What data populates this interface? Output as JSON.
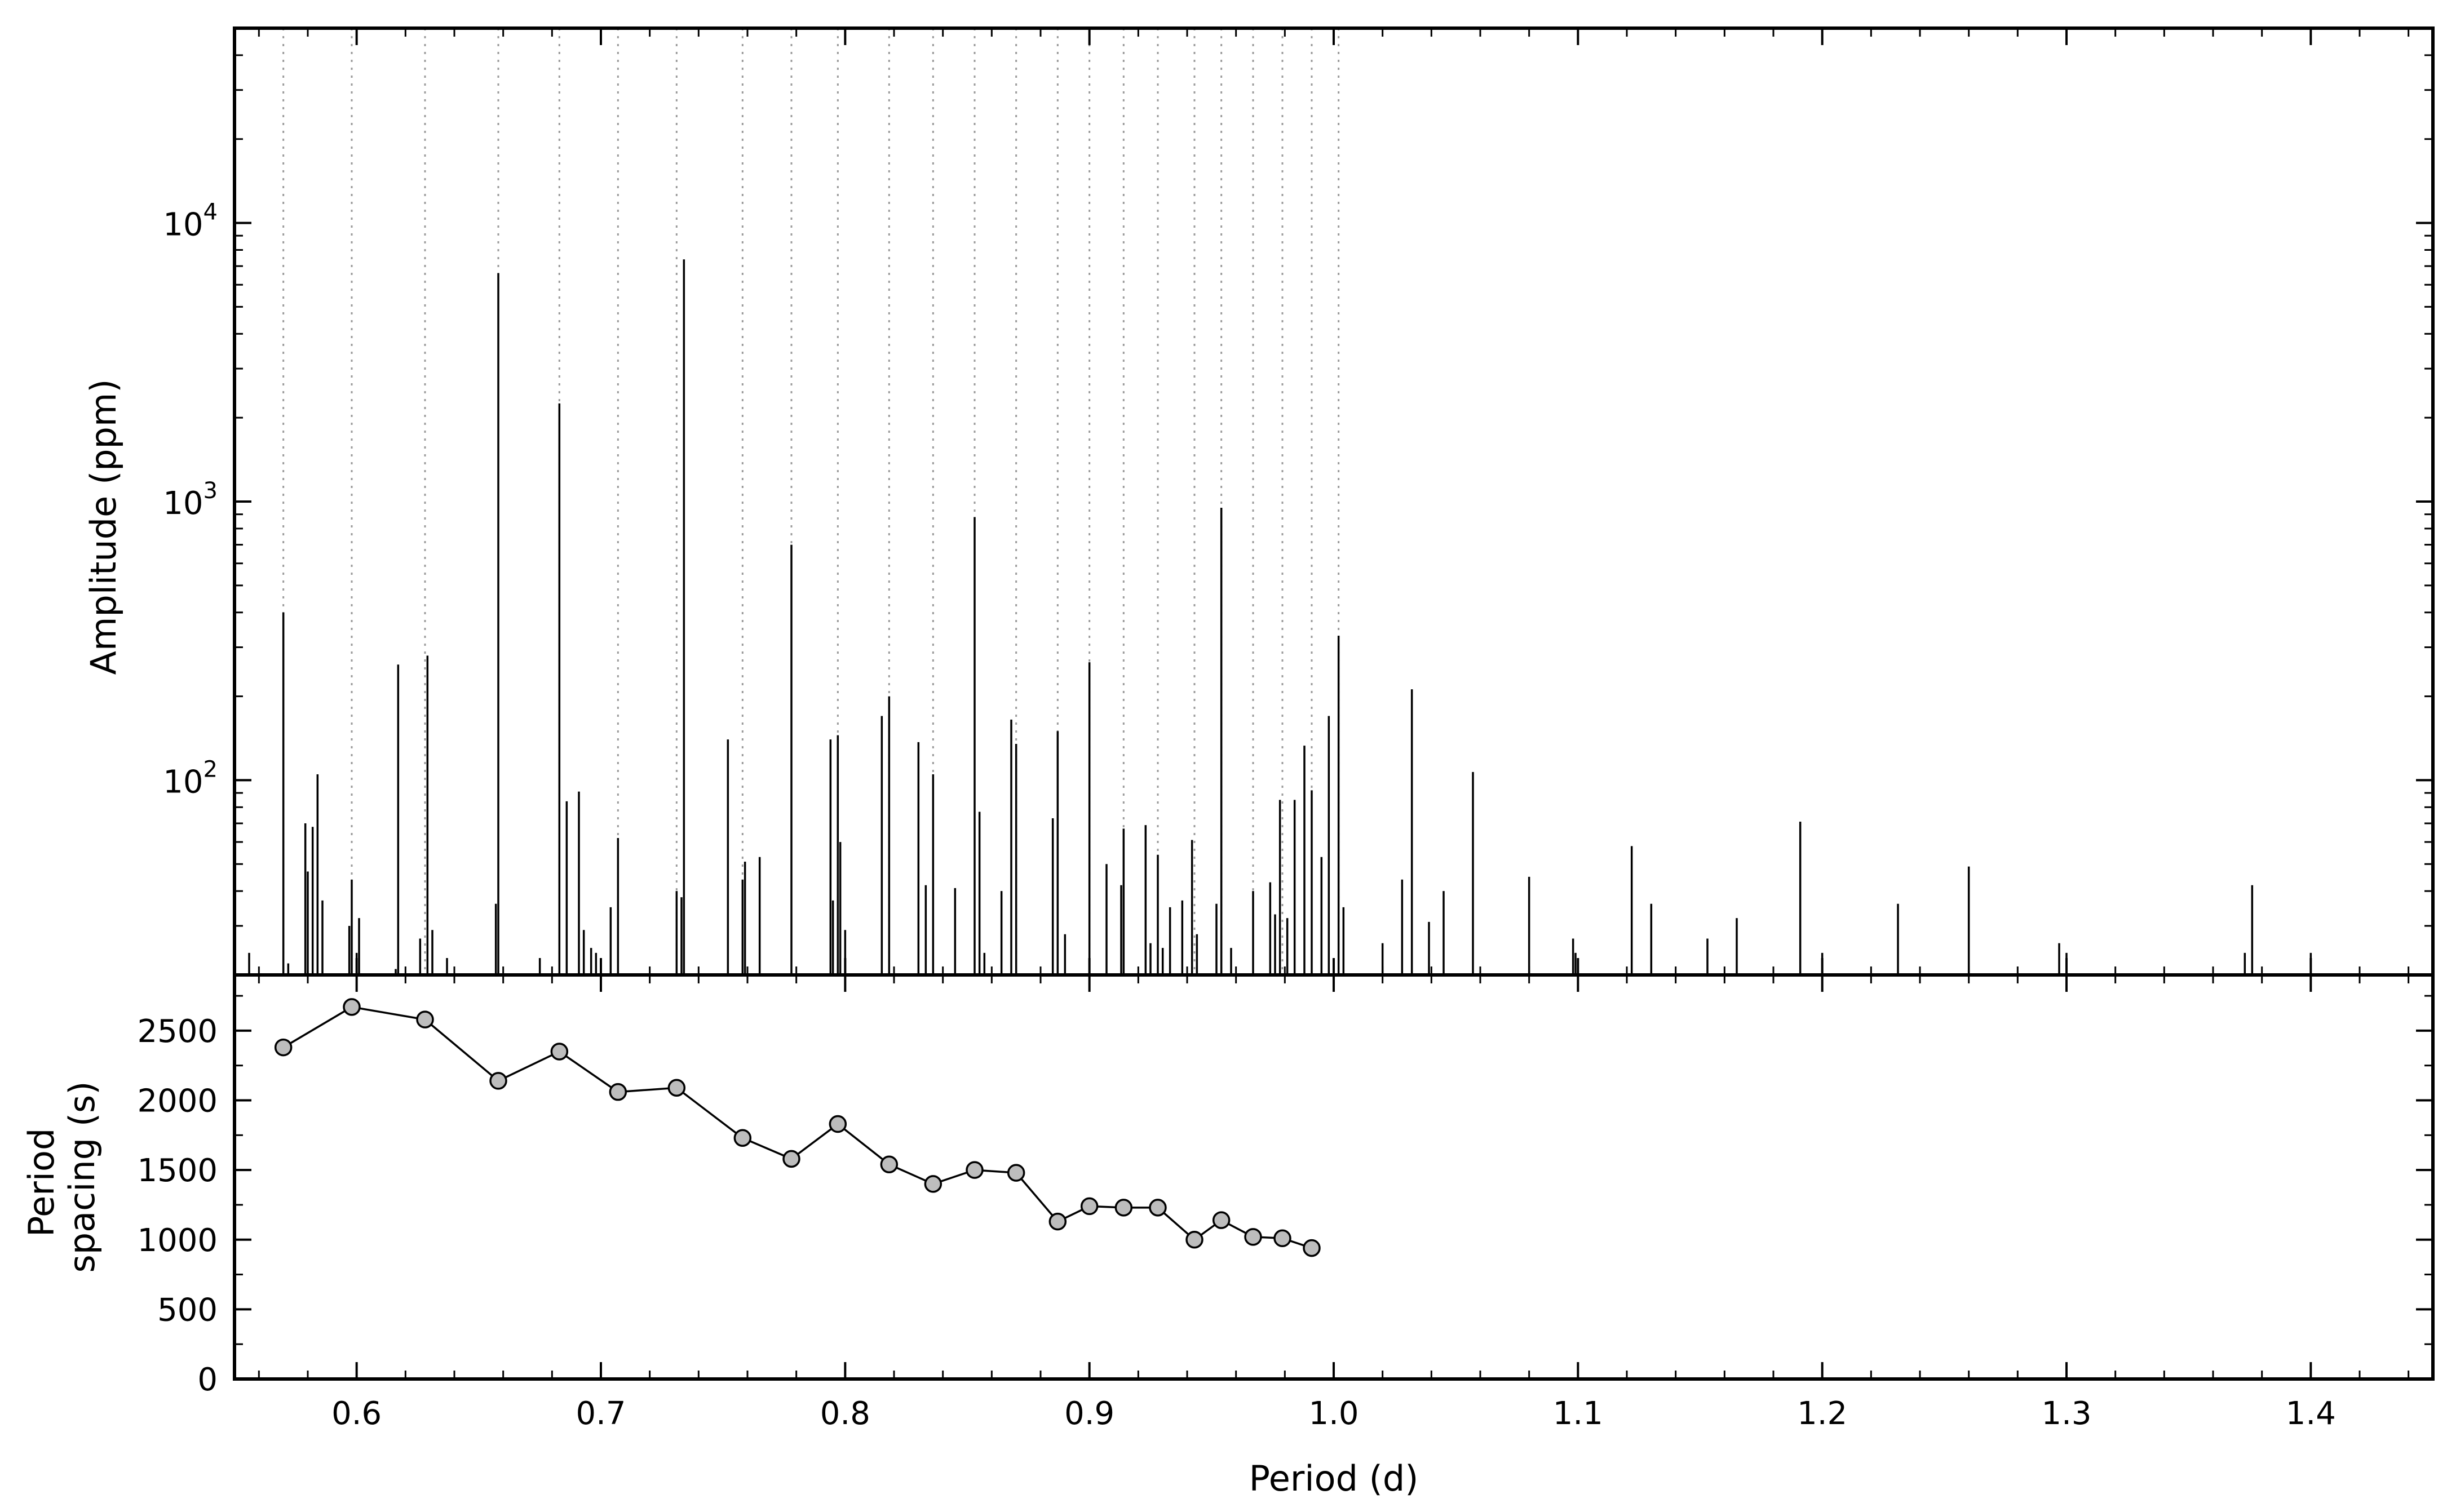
{
  "chart_data": [
    {
      "type": "bar",
      "panel": "top",
      "xlabel": "",
      "ylabel": "Amplitude (ppm)",
      "xlim": [
        0.55,
        1.45
      ],
      "ylim": [
        20,
        50000
      ],
      "yscale": "log",
      "grid": false,
      "ytick_labels": [
        {
          "value": 100,
          "base": "10",
          "exp": "2"
        },
        {
          "value": 1000,
          "base": "10",
          "exp": "3"
        },
        {
          "value": 10000,
          "base": "10",
          "exp": "4"
        }
      ],
      "guide_periods": [
        0.57,
        0.598,
        0.628,
        0.658,
        0.683,
        0.707,
        0.731,
        0.758,
        0.778,
        0.797,
        0.818,
        0.836,
        0.853,
        0.87,
        0.887,
        0.9,
        0.914,
        0.928,
        0.943,
        0.954,
        0.967,
        0.979,
        0.991,
        1.002
      ],
      "peaks": [
        {
          "x": 0.556,
          "y": 24
        },
        {
          "x": 0.57,
          "y": 400
        },
        {
          "x": 0.572,
          "y": 22
        },
        {
          "x": 0.579,
          "y": 70
        },
        {
          "x": 0.58,
          "y": 47
        },
        {
          "x": 0.582,
          "y": 68
        },
        {
          "x": 0.584,
          "y": 105
        },
        {
          "x": 0.586,
          "y": 37
        },
        {
          "x": 0.597,
          "y": 30
        },
        {
          "x": 0.598,
          "y": 44
        },
        {
          "x": 0.6,
          "y": 24
        },
        {
          "x": 0.601,
          "y": 32
        },
        {
          "x": 0.616,
          "y": 21
        },
        {
          "x": 0.617,
          "y": 260
        },
        {
          "x": 0.626,
          "y": 27
        },
        {
          "x": 0.629,
          "y": 280
        },
        {
          "x": 0.631,
          "y": 29
        },
        {
          "x": 0.637,
          "y": 23
        },
        {
          "x": 0.657,
          "y": 36
        },
        {
          "x": 0.658,
          "y": 6600
        },
        {
          "x": 0.675,
          "y": 23
        },
        {
          "x": 0.683,
          "y": 2250
        },
        {
          "x": 0.686,
          "y": 84
        },
        {
          "x": 0.691,
          "y": 91
        },
        {
          "x": 0.693,
          "y": 29
        },
        {
          "x": 0.696,
          "y": 25
        },
        {
          "x": 0.698,
          "y": 24
        },
        {
          "x": 0.704,
          "y": 35
        },
        {
          "x": 0.707,
          "y": 62
        },
        {
          "x": 0.731,
          "y": 40
        },
        {
          "x": 0.733,
          "y": 38
        },
        {
          "x": 0.734,
          "y": 7400
        },
        {
          "x": 0.752,
          "y": 140
        },
        {
          "x": 0.758,
          "y": 44
        },
        {
          "x": 0.759,
          "y": 51
        },
        {
          "x": 0.765,
          "y": 53
        },
        {
          "x": 0.778,
          "y": 700
        },
        {
          "x": 0.794,
          "y": 140
        },
        {
          "x": 0.795,
          "y": 37
        },
        {
          "x": 0.797,
          "y": 145
        },
        {
          "x": 0.798,
          "y": 60
        },
        {
          "x": 0.8,
          "y": 29
        },
        {
          "x": 0.815,
          "y": 170
        },
        {
          "x": 0.818,
          "y": 200
        },
        {
          "x": 0.83,
          "y": 137
        },
        {
          "x": 0.833,
          "y": 42
        },
        {
          "x": 0.836,
          "y": 105
        },
        {
          "x": 0.845,
          "y": 41
        },
        {
          "x": 0.853,
          "y": 880
        },
        {
          "x": 0.855,
          "y": 77
        },
        {
          "x": 0.857,
          "y": 24
        },
        {
          "x": 0.864,
          "y": 40
        },
        {
          "x": 0.868,
          "y": 165
        },
        {
          "x": 0.87,
          "y": 135
        },
        {
          "x": 0.885,
          "y": 73
        },
        {
          "x": 0.887,
          "y": 150
        },
        {
          "x": 0.89,
          "y": 28
        },
        {
          "x": 0.9,
          "y": 265
        },
        {
          "x": 0.907,
          "y": 50
        },
        {
          "x": 0.913,
          "y": 42
        },
        {
          "x": 0.914,
          "y": 67
        },
        {
          "x": 0.923,
          "y": 69
        },
        {
          "x": 0.925,
          "y": 26
        },
        {
          "x": 0.928,
          "y": 54
        },
        {
          "x": 0.93,
          "y": 25
        },
        {
          "x": 0.933,
          "y": 35
        },
        {
          "x": 0.938,
          "y": 37
        },
        {
          "x": 0.942,
          "y": 61
        },
        {
          "x": 0.944,
          "y": 28
        },
        {
          "x": 0.952,
          "y": 36
        },
        {
          "x": 0.954,
          "y": 950
        },
        {
          "x": 0.958,
          "y": 25
        },
        {
          "x": 0.967,
          "y": 40
        },
        {
          "x": 0.974,
          "y": 43
        },
        {
          "x": 0.976,
          "y": 33
        },
        {
          "x": 0.978,
          "y": 85
        },
        {
          "x": 0.981,
          "y": 32
        },
        {
          "x": 0.984,
          "y": 85
        },
        {
          "x": 0.988,
          "y": 133
        },
        {
          "x": 0.991,
          "y": 92
        },
        {
          "x": 0.995,
          "y": 53
        },
        {
          "x": 0.998,
          "y": 170
        },
        {
          "x": 1.002,
          "y": 330
        },
        {
          "x": 1.004,
          "y": 35
        },
        {
          "x": 1.02,
          "y": 26
        },
        {
          "x": 1.028,
          "y": 44
        },
        {
          "x": 1.032,
          "y": 212
        },
        {
          "x": 1.039,
          "y": 31
        },
        {
          "x": 1.045,
          "y": 40
        },
        {
          "x": 1.057,
          "y": 107
        },
        {
          "x": 1.08,
          "y": 45
        },
        {
          "x": 1.098,
          "y": 27
        },
        {
          "x": 1.099,
          "y": 24
        },
        {
          "x": 1.122,
          "y": 58
        },
        {
          "x": 1.13,
          "y": 36
        },
        {
          "x": 1.153,
          "y": 27
        },
        {
          "x": 1.165,
          "y": 32
        },
        {
          "x": 1.191,
          "y": 71
        },
        {
          "x": 1.2,
          "y": 24
        },
        {
          "x": 1.231,
          "y": 36
        },
        {
          "x": 1.26,
          "y": 49
        },
        {
          "x": 1.297,
          "y": 26
        },
        {
          "x": 1.3,
          "y": 24
        },
        {
          "x": 1.373,
          "y": 24
        },
        {
          "x": 1.376,
          "y": 42
        },
        {
          "x": 1.4,
          "y": 24
        }
      ]
    },
    {
      "type": "line",
      "panel": "bottom",
      "xlabel": "Period (d)",
      "ylabel_lines": [
        "Period",
        "spacing (s)"
      ],
      "xlim": [
        0.55,
        1.45
      ],
      "ylim": [
        0,
        2900
      ],
      "grid": false,
      "x_ticks": [
        0.6,
        0.7,
        0.8,
        0.9,
        1.0,
        1.1,
        1.2,
        1.3,
        1.4
      ],
      "x_tick_labels": [
        "0.6",
        "0.7",
        "0.8",
        "0.9",
        "1.0",
        "1.1",
        "1.2",
        "1.3",
        "1.4"
      ],
      "y_ticks": [
        0,
        500,
        1000,
        1500,
        2000,
        2500
      ],
      "y_tick_labels": [
        "0",
        "500",
        "1000",
        "1500",
        "2000",
        "2500"
      ],
      "x": [
        0.57,
        0.598,
        0.628,
        0.658,
        0.683,
        0.707,
        0.731,
        0.758,
        0.778,
        0.797,
        0.818,
        0.836,
        0.853,
        0.87,
        0.887,
        0.9,
        0.914,
        0.928,
        0.943,
        0.954,
        0.967,
        0.979,
        0.991
      ],
      "y": [
        2380,
        2670,
        2580,
        2140,
        2350,
        2060,
        2090,
        1730,
        1580,
        1830,
        1540,
        1400,
        1500,
        1480,
        1130,
        1240,
        1230,
        1230,
        1000,
        1140,
        1020,
        1010,
        940
      ]
    }
  ]
}
